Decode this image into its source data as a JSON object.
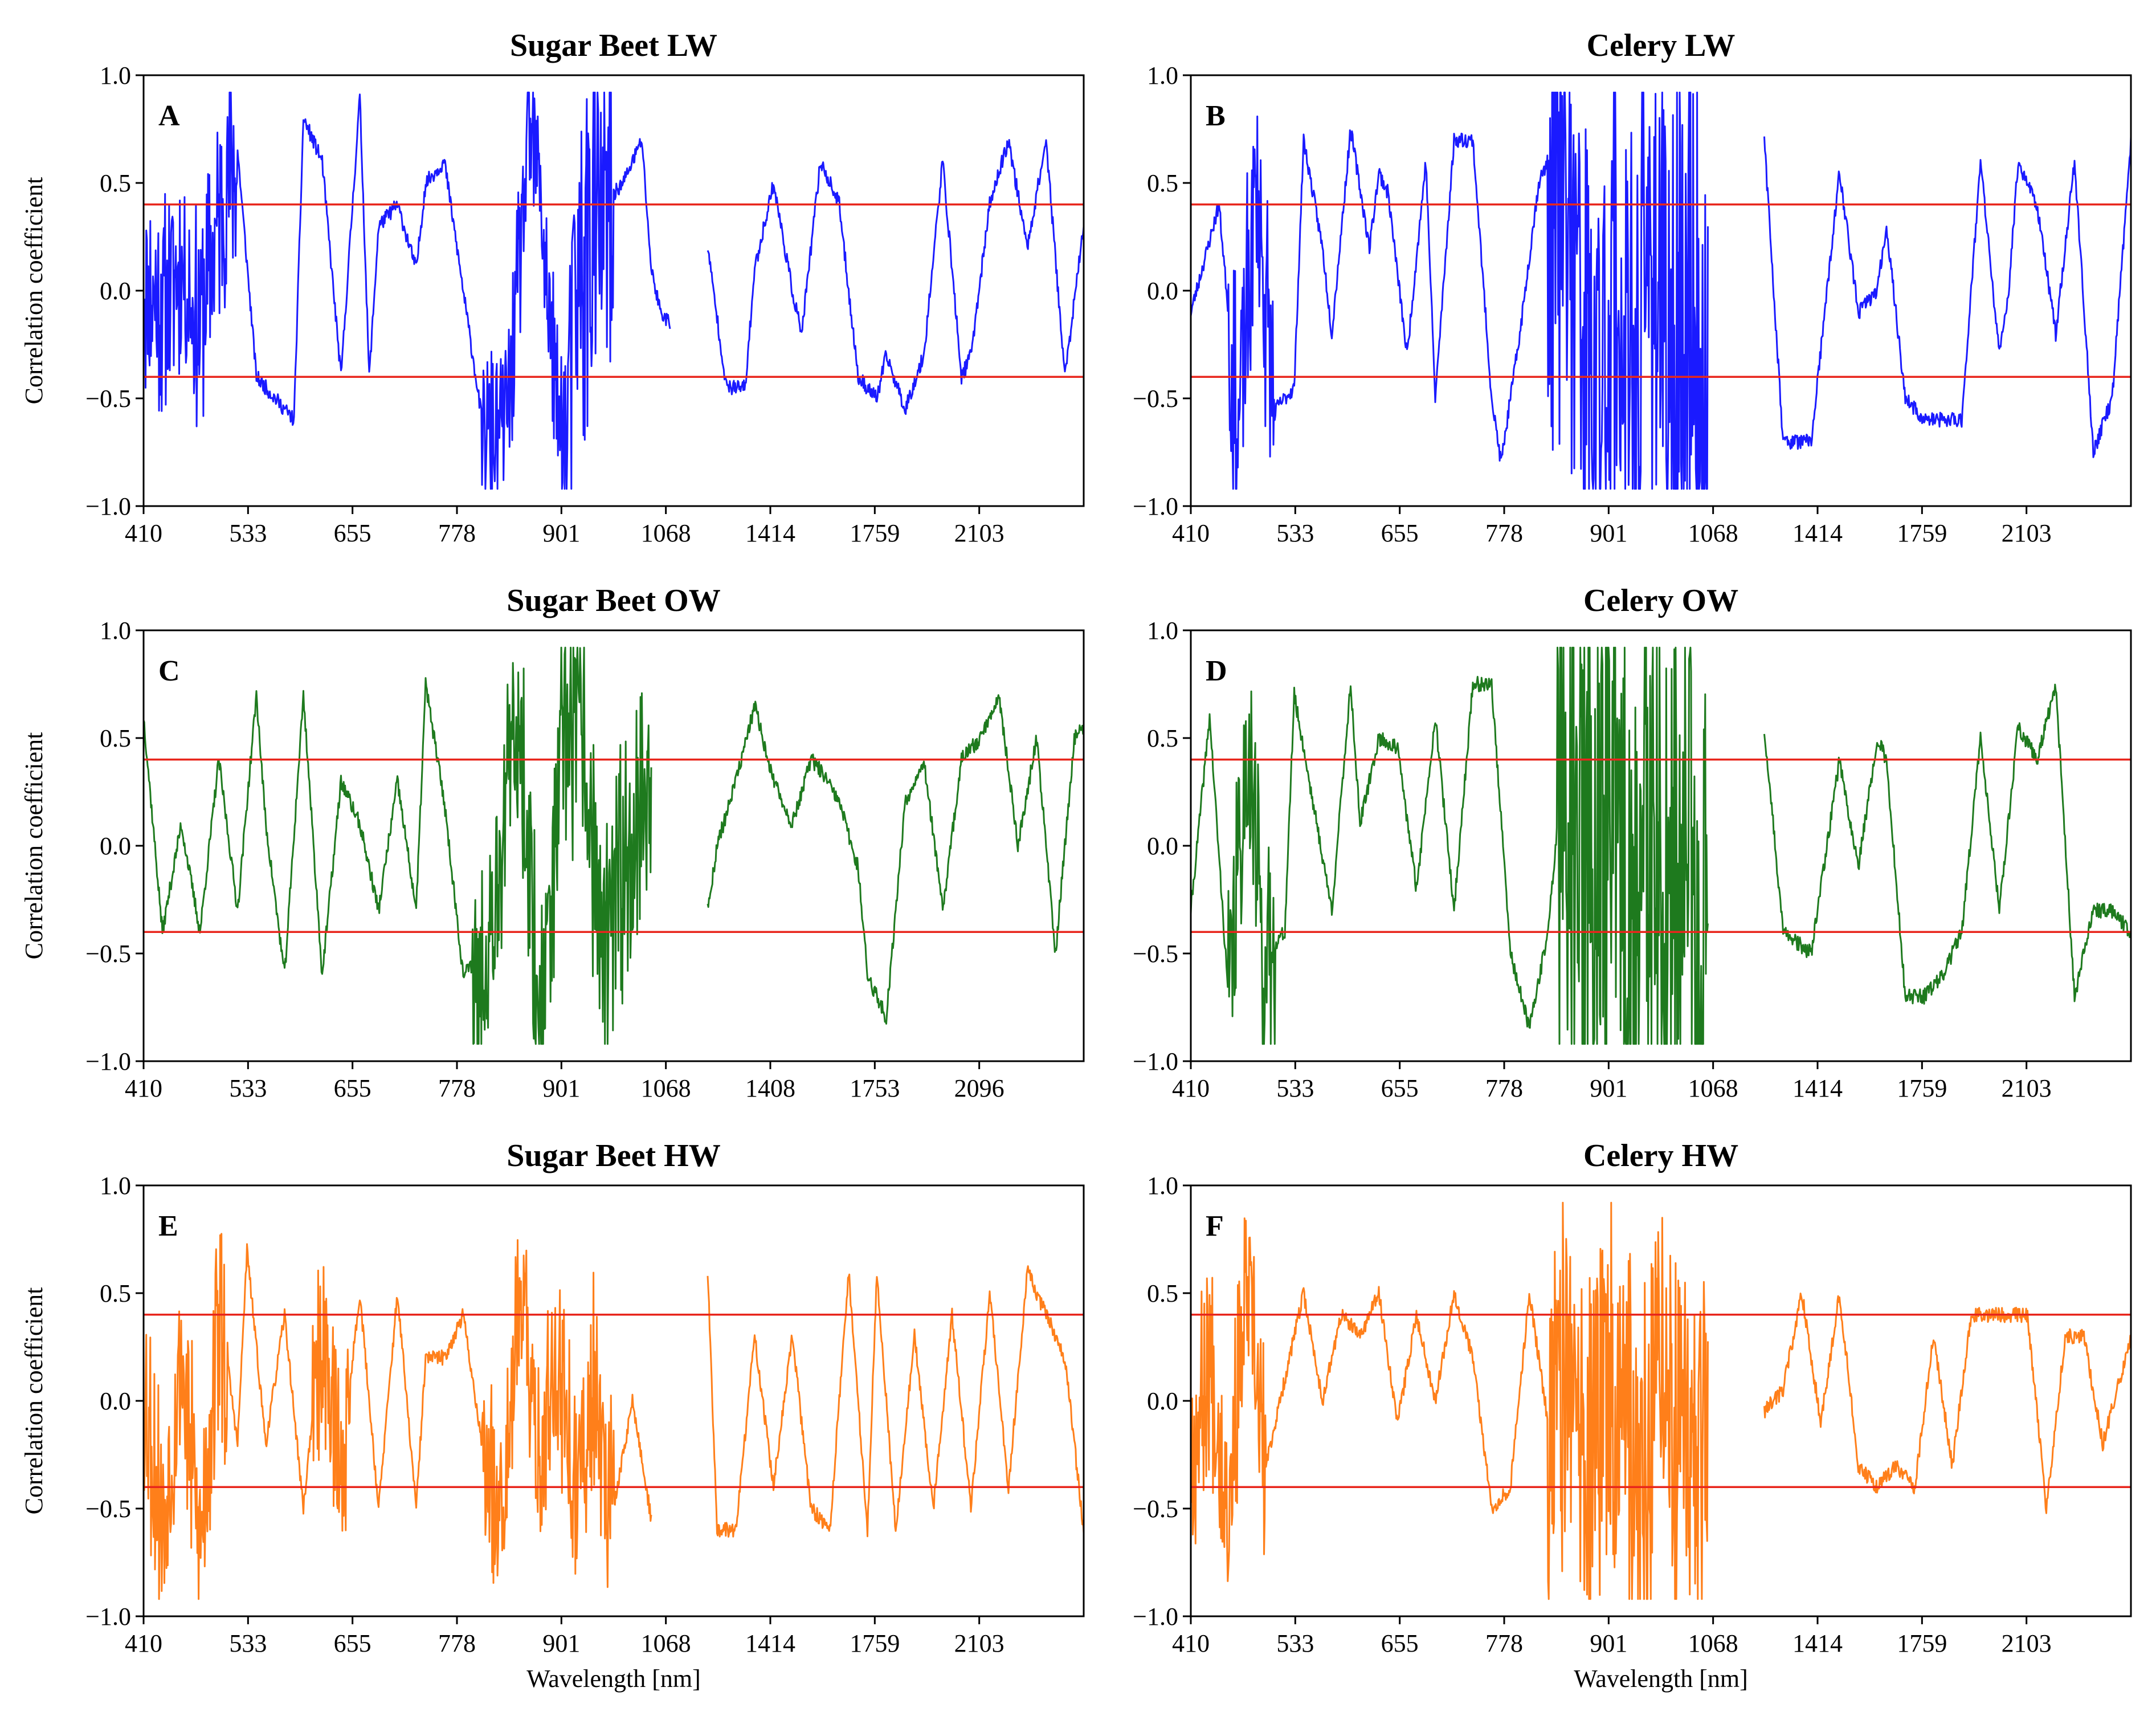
{
  "figure": {
    "xlabel": "Wavelength [nm]",
    "ylabel": "Correlation coefficient",
    "colors": {
      "threshold": "#e8261c",
      "LW": "#1a1aff",
      "OW": "#1e7a1e",
      "HW": "#ff7f1a"
    }
  },
  "chart_data": [
    {
      "type": "line",
      "panel": "A",
      "title": "Sugar Beet LW",
      "color": "#1a1aff",
      "seed": 11,
      "xlabel": "",
      "ylabel": "Correlation coefficient",
      "x_ticks": [
        "410",
        "533",
        "655",
        "778",
        "901",
        "1068",
        "1414",
        "1759",
        "2103"
      ],
      "ylim": [
        -1.0,
        1.0
      ],
      "y_ticks": [
        "1.0",
        "0.5",
        "0.0",
        "-0.5",
        "-1.0"
      ],
      "thresholds": [
        0.4,
        -0.4
      ],
      "segments": [
        {
          "range": [
            0,
            0.56
          ],
          "x": [
            0,
            0.02,
            0.04,
            0.06,
            0.075,
            0.09,
            0.1,
            0.12,
            0.14,
            0.16,
            0.17,
            0.19,
            0.21,
            0.23,
            0.24,
            0.25,
            0.27,
            0.29,
            0.3,
            0.32,
            0.34,
            0.36,
            0.38,
            0.39,
            0.41,
            0.42,
            0.44,
            0.45,
            0.46,
            0.48,
            0.49,
            0.51,
            0.53,
            0.54,
            0.55,
            0.56
          ],
          "y": [
            0.1,
            0.0,
            0.2,
            -0.1,
            0.3,
            0.6,
            0.65,
            -0.4,
            -0.5,
            -0.6,
            0.8,
            0.6,
            -0.4,
            0.9,
            -0.4,
            0.3,
            0.4,
            0.1,
            0.5,
            0.6,
            0.0,
            -0.6,
            -0.6,
            -0.4,
            0.8,
            0.6,
            -0.5,
            -0.6,
            0.1,
            0.5,
            0.4,
            0.5,
            0.7,
            0.1,
            -0.1,
            -0.15
          ],
          "noise": [
            [
              0,
              0.1,
              0.45
            ],
            [
              0.36,
              0.45,
              0.35
            ],
            [
              0.45,
              0.5,
              0.8
            ]
          ]
        },
        {
          "range": [
            0.6,
            1.0
          ],
          "x": [
            0.6,
            0.62,
            0.64,
            0.65,
            0.67,
            0.69,
            0.7,
            0.72,
            0.74,
            0.76,
            0.78,
            0.79,
            0.81,
            0.83,
            0.85,
            0.87,
            0.88,
            0.9,
            0.92,
            0.94,
            0.96,
            0.98,
            1.0
          ],
          "y": [
            0.2,
            -0.45,
            -0.45,
            0.1,
            0.5,
            0.0,
            -0.2,
            0.6,
            0.4,
            -0.4,
            -0.5,
            -0.3,
            -0.55,
            -0.3,
            0.6,
            -0.4,
            -0.3,
            0.4,
            0.7,
            0.2,
            0.7,
            -0.4,
            0.3
          ]
        }
      ]
    },
    {
      "type": "line",
      "panel": "B",
      "title": "Celery LW",
      "color": "#1a1aff",
      "seed": 23,
      "xlabel": "",
      "ylabel": "",
      "x_ticks": [
        "410",
        "533",
        "655",
        "778",
        "901",
        "1068",
        "1414",
        "1759",
        "2103"
      ],
      "ylim": [
        -1.0,
        1.0
      ],
      "y_ticks": [
        "1.0",
        "0.5",
        "0.0",
        "-0.5",
        "-1.0"
      ],
      "thresholds": [
        0.4,
        -0.4
      ],
      "segments": [
        {
          "range": [
            0,
            0.55
          ],
          "x": [
            0,
            0.03,
            0.05,
            0.07,
            0.09,
            0.11,
            0.12,
            0.14,
            0.15,
            0.17,
            0.19,
            0.2,
            0.21,
            0.23,
            0.25,
            0.26,
            0.28,
            0.3,
            0.32,
            0.33,
            0.35,
            0.37,
            0.39,
            0.41,
            0.43,
            0.45,
            0.47,
            0.49,
            0.51,
            0.53,
            0.55
          ],
          "y": [
            -0.1,
            0.4,
            -0.6,
            0.6,
            -0.55,
            -0.45,
            0.7,
            0.2,
            -0.2,
            0.75,
            0.2,
            0.55,
            0.45,
            -0.3,
            0.6,
            -0.5,
            0.7,
            0.7,
            -0.5,
            -0.8,
            -0.2,
            0.5,
            0.7,
            0.2,
            -0.5,
            0.3,
            -0.4,
            0.5,
            -0.3,
            0.2,
            -0.5
          ],
          "noise": [
            [
              0.04,
              0.09,
              0.55
            ],
            [
              0.38,
              0.55,
              1.1
            ]
          ]
        },
        {
          "range": [
            0.61,
            1.0
          ],
          "x": [
            0.61,
            0.63,
            0.66,
            0.69,
            0.71,
            0.73,
            0.74,
            0.76,
            0.78,
            0.8,
            0.82,
            0.84,
            0.86,
            0.87,
            0.88,
            0.9,
            0.92,
            0.94,
            0.96,
            0.98,
            1.0
          ],
          "y": [
            0.7,
            -0.7,
            -0.7,
            0.55,
            -0.1,
            0.0,
            0.3,
            -0.5,
            -0.6,
            -0.6,
            -0.6,
            0.6,
            -0.3,
            0.0,
            0.6,
            0.4,
            -0.2,
            0.6,
            -0.75,
            -0.5,
            0.7
          ]
        }
      ]
    },
    {
      "type": "line",
      "panel": "C",
      "title": "Sugar Beet OW",
      "color": "#1e7a1e",
      "seed": 37,
      "xlabel": "",
      "ylabel": "Correlation coefficient",
      "x_ticks": [
        "410",
        "533",
        "655",
        "778",
        "901",
        "1068",
        "1408",
        "1753",
        "2096"
      ],
      "ylim": [
        -1.0,
        1.0
      ],
      "y_ticks": [
        "1.0",
        "0.5",
        "0.0",
        "-0.5",
        "-1.0"
      ],
      "thresholds": [
        0.4,
        -0.4
      ],
      "segments": [
        {
          "range": [
            0,
            0.54
          ],
          "x": [
            0,
            0.02,
            0.04,
            0.06,
            0.08,
            0.1,
            0.12,
            0.13,
            0.15,
            0.17,
            0.19,
            0.21,
            0.23,
            0.25,
            0.27,
            0.29,
            0.3,
            0.32,
            0.34,
            0.36,
            0.38,
            0.4,
            0.42,
            0.43,
            0.45,
            0.47,
            0.49,
            0.51,
            0.53,
            0.54
          ],
          "y": [
            0.6,
            -0.4,
            0.1,
            -0.4,
            0.4,
            -0.3,
            0.7,
            0.1,
            -0.6,
            0.7,
            -0.6,
            0.3,
            0.1,
            -0.3,
            0.3,
            -0.3,
            0.75,
            0.2,
            -0.6,
            -0.5,
            0.1,
            0.7,
            -0.7,
            -0.4,
            0.7,
            0.5,
            -0.5,
            0.0,
            0.3,
            0.4
          ],
          "noise": [
            [
              0.35,
              0.43,
              0.45
            ],
            [
              0.41,
              0.48,
              0.55
            ],
            [
              0.48,
              0.54,
              0.55
            ]
          ]
        },
        {
          "range": [
            0.6,
            1.0
          ],
          "x": [
            0.6,
            0.61,
            0.63,
            0.65,
            0.67,
            0.69,
            0.71,
            0.72,
            0.74,
            0.76,
            0.77,
            0.79,
            0.81,
            0.83,
            0.85,
            0.87,
            0.89,
            0.91,
            0.93,
            0.95,
            0.97,
            0.99,
            1.0
          ],
          "y": [
            -0.3,
            0.0,
            0.3,
            0.65,
            0.3,
            0.1,
            0.4,
            0.35,
            0.2,
            -0.1,
            -0.6,
            -0.8,
            0.2,
            0.4,
            -0.3,
            0.4,
            0.5,
            0.7,
            0.0,
            0.5,
            -0.5,
            0.5,
            0.55
          ]
        }
      ]
    },
    {
      "type": "line",
      "panel": "D",
      "title": "Celery OW",
      "color": "#1e7a1e",
      "seed": 41,
      "xlabel": "",
      "ylabel": "",
      "x_ticks": [
        "410",
        "533",
        "655",
        "778",
        "901",
        "1068",
        "1414",
        "1759",
        "2103"
      ],
      "ylim": [
        -1.0,
        1.0
      ],
      "y_ticks": [
        "1.0",
        "0.5",
        "0.0",
        "-0.5",
        "-1.0"
      ],
      "thresholds": [
        0.4,
        -0.4
      ],
      "segments": [
        {
          "range": [
            0,
            0.55
          ],
          "x": [
            0,
            0.02,
            0.04,
            0.06,
            0.08,
            0.1,
            0.11,
            0.13,
            0.15,
            0.17,
            0.18,
            0.2,
            0.22,
            0.24,
            0.26,
            0.28,
            0.3,
            0.32,
            0.34,
            0.36,
            0.38,
            0.4,
            0.42,
            0.45,
            0.47,
            0.49,
            0.51,
            0.53,
            0.55
          ],
          "y": [
            -0.3,
            0.6,
            -0.7,
            0.6,
            -0.5,
            -0.4,
            0.7,
            0.2,
            -0.3,
            0.75,
            0.1,
            0.5,
            0.45,
            -0.2,
            0.6,
            -0.3,
            0.75,
            0.75,
            -0.5,
            -0.85,
            -0.4,
            0.6,
            0.0,
            0.3,
            -0.3,
            0.2,
            -0.4,
            0.3,
            -0.5
          ],
          "noise": [
            [
              0.04,
              0.09,
              0.5
            ],
            [
              0.39,
              0.55,
              1.2
            ]
          ]
        },
        {
          "range": [
            0.61,
            1.0
          ],
          "x": [
            0.61,
            0.63,
            0.66,
            0.69,
            0.71,
            0.73,
            0.74,
            0.76,
            0.78,
            0.8,
            0.82,
            0.84,
            0.86,
            0.88,
            0.9,
            0.92,
            0.94,
            0.96,
            0.98,
            1.0
          ],
          "y": [
            0.55,
            -0.4,
            -0.5,
            0.4,
            -0.1,
            0.5,
            0.4,
            -0.7,
            -0.7,
            -0.6,
            -0.4,
            0.5,
            -0.3,
            0.55,
            0.4,
            0.75,
            -0.7,
            -0.3,
            -0.3,
            -0.4
          ]
        }
      ]
    },
    {
      "type": "line",
      "panel": "E",
      "title": "Sugar Beet HW",
      "color": "#ff7f1a",
      "seed": 53,
      "xlabel": "Wavelength [nm]",
      "ylabel": "Correlation coefficient",
      "x_ticks": [
        "410",
        "533",
        "655",
        "778",
        "901",
        "1068",
        "1414",
        "1759",
        "2103"
      ],
      "ylim": [
        -1.0,
        1.0
      ],
      "y_ticks": [
        "1.0",
        "0.5",
        "0.0",
        "-0.5",
        "-1.0"
      ],
      "thresholds": [
        0.4,
        -0.4
      ],
      "segments": [
        {
          "range": [
            0,
            0.54
          ],
          "x": [
            0,
            0.02,
            0.04,
            0.06,
            0.08,
            0.1,
            0.11,
            0.13,
            0.15,
            0.17,
            0.19,
            0.21,
            0.23,
            0.25,
            0.27,
            0.29,
            0.3,
            0.32,
            0.34,
            0.36,
            0.38,
            0.4,
            0.42,
            0.44,
            0.46,
            0.48,
            0.5,
            0.52,
            0.54
          ],
          "y": [
            0.2,
            -0.5,
            0.3,
            -0.6,
            0.5,
            -0.2,
            0.7,
            -0.2,
            0.4,
            -0.5,
            0.4,
            -0.3,
            0.5,
            -0.5,
            0.5,
            -0.5,
            0.2,
            0.2,
            0.4,
            -0.2,
            -0.4,
            0.6,
            -0.2,
            0.3,
            -0.4,
            0.2,
            -0.5,
            0.0,
            -0.55
          ],
          "noise": [
            [
              0,
              0.09,
              0.5
            ],
            [
              0.18,
              0.22,
              0.4
            ],
            [
              0.36,
              0.44,
              0.4
            ],
            [
              0.42,
              0.5,
              0.45
            ]
          ]
        },
        {
          "range": [
            0.6,
            1.0
          ],
          "x": [
            0.6,
            0.61,
            0.63,
            0.65,
            0.67,
            0.69,
            0.71,
            0.73,
            0.75,
            0.77,
            0.78,
            0.8,
            0.82,
            0.84,
            0.86,
            0.88,
            0.9,
            0.92,
            0.94,
            0.96,
            0.98,
            1.0
          ],
          "y": [
            0.6,
            -0.6,
            -0.6,
            0.3,
            -0.4,
            0.3,
            -0.5,
            -0.6,
            0.6,
            -0.6,
            0.6,
            -0.6,
            0.3,
            -0.5,
            0.4,
            -0.5,
            0.5,
            -0.4,
            0.6,
            0.4,
            0.2,
            -0.6
          ]
        }
      ]
    },
    {
      "type": "line",
      "panel": "F",
      "title": "Celery HW",
      "color": "#ff7f1a",
      "seed": 67,
      "xlabel": "Wavelength [nm]",
      "ylabel": "",
      "x_ticks": [
        "410",
        "533",
        "655",
        "778",
        "901",
        "1068",
        "1414",
        "1759",
        "2103"
      ],
      "ylim": [
        -1.0,
        1.0
      ],
      "y_ticks": [
        "1.0",
        "0.5",
        "0.0",
        "-0.5",
        "-1.0"
      ],
      "thresholds": [
        0.4,
        -0.4
      ],
      "segments": [
        {
          "range": [
            0,
            0.55
          ],
          "x": [
            0,
            0.02,
            0.04,
            0.06,
            0.08,
            0.1,
            0.12,
            0.14,
            0.16,
            0.18,
            0.2,
            0.22,
            0.24,
            0.26,
            0.28,
            0.3,
            0.32,
            0.34,
            0.36,
            0.38,
            0.4,
            0.42,
            0.44,
            0.46,
            0.48,
            0.5,
            0.52,
            0.55
          ],
          "y": [
            -0.2,
            0.3,
            -0.4,
            0.6,
            -0.3,
            0.1,
            0.5,
            0.0,
            0.4,
            0.3,
            0.5,
            -0.1,
            0.4,
            0.0,
            0.5,
            0.2,
            -0.5,
            -0.4,
            0.5,
            -0.1,
            0.3,
            -0.3,
            0.3,
            0.1,
            -0.3,
            0.1,
            -0.2,
            0.0
          ],
          "noise": [
            [
              0,
              0.08,
              0.45
            ],
            [
              0.38,
              0.55,
              0.8
            ]
          ]
        },
        {
          "range": [
            0.61,
            1.0
          ],
          "x": [
            0.61,
            0.63,
            0.65,
            0.67,
            0.69,
            0.71,
            0.73,
            0.75,
            0.77,
            0.79,
            0.81,
            0.83,
            0.85,
            0.87,
            0.89,
            0.91,
            0.93,
            0.95,
            0.97,
            1.0
          ],
          "y": [
            -0.05,
            0.05,
            0.5,
            -0.1,
            0.5,
            -0.3,
            -0.4,
            -0.3,
            -0.4,
            0.3,
            -0.3,
            0.4,
            0.4,
            0.4,
            0.4,
            -0.5,
            0.3,
            0.3,
            -0.2,
            0.3
          ]
        }
      ]
    }
  ]
}
